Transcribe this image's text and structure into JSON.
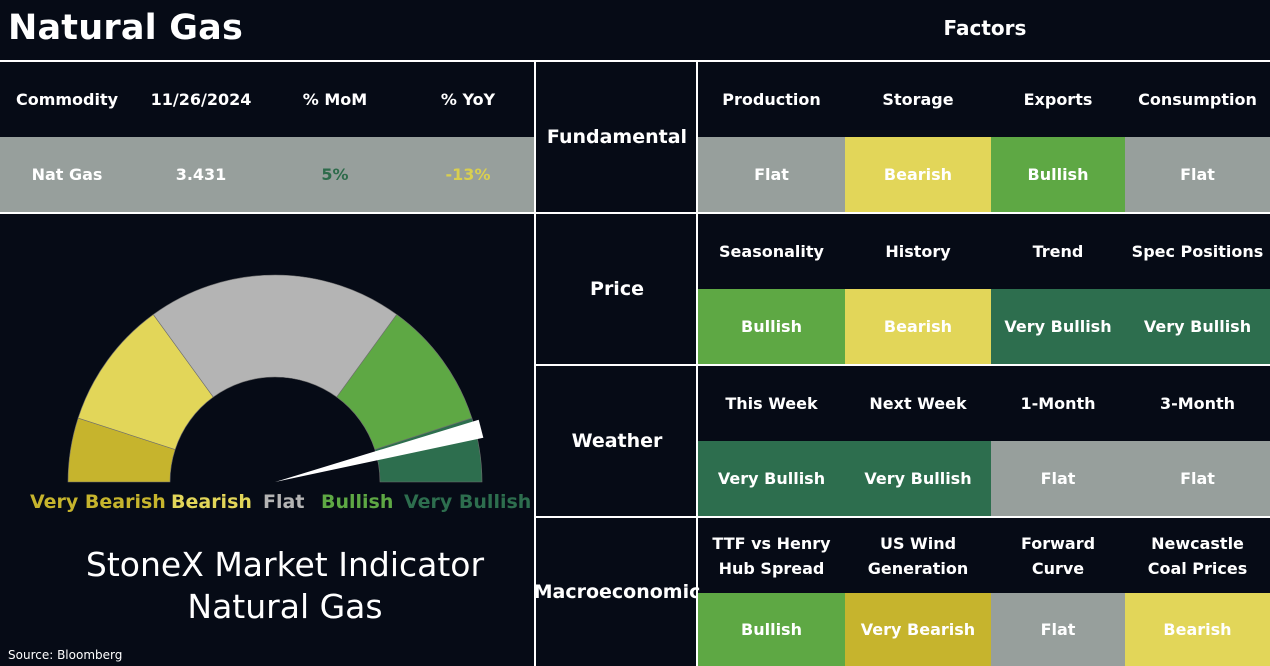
{
  "title": "Natural Gas",
  "factors_title": "Factors",
  "commodity_table": {
    "headers": [
      "Commodity",
      "11/26/2024",
      "% MoM",
      "% YoY"
    ],
    "row": {
      "commodity": "Nat Gas",
      "price": "3.431",
      "mom": "5%",
      "yoy": "-13%"
    },
    "colors": {
      "mom": "#2e6b4b",
      "yoy": "#d9cf4f",
      "row_bg": "#979f9c"
    }
  },
  "gauge": {
    "labels": [
      "Very Bearish",
      "Bearish",
      "Flat",
      "Bullish",
      "Very Bullish"
    ],
    "colors": [
      "#c6b42d",
      "#e2d659",
      "#b4b4b4",
      "#5ea844",
      "#2d6e4e"
    ],
    "needle_reading": "Very Bullish"
  },
  "indicator_title": [
    "StoneX Market Indicator",
    "Natural Gas"
  ],
  "source": "Source: Bloomberg",
  "categories": [
    {
      "name": "Fundamental",
      "headers": [
        "Production",
        "Storage",
        "Exports",
        "Consumption"
      ],
      "values": [
        "Flat",
        "Bearish",
        "Bullish",
        "Flat"
      ]
    },
    {
      "name": "Price",
      "headers": [
        "Seasonality",
        "History",
        "Trend",
        "Spec Positions"
      ],
      "values": [
        "Bullish",
        "Bearish",
        "Very Bullish",
        "Very Bullish"
      ]
    },
    {
      "name": "Weather",
      "headers": [
        "This Week",
        "Next Week",
        "1-Month",
        "3-Month"
      ],
      "values": [
        "Very Bullish",
        "Very Bullish",
        "Flat",
        "Flat"
      ]
    },
    {
      "name": "Macroeconomic",
      "headers": [
        "TTF vs Henry Hub Spread",
        "US Wind Generation",
        "Forward Curve",
        "Newcastle Coal Prices"
      ],
      "values": [
        "Bullish",
        "Very Bearish",
        "Flat",
        "Bearish"
      ]
    }
  ],
  "value_colors": {
    "Very Bearish": "#c6b42d",
    "Bearish": "#e2d659",
    "Flat": "#979f9c",
    "Bullish": "#5ea844",
    "Very Bullish": "#2d6e4e"
  }
}
